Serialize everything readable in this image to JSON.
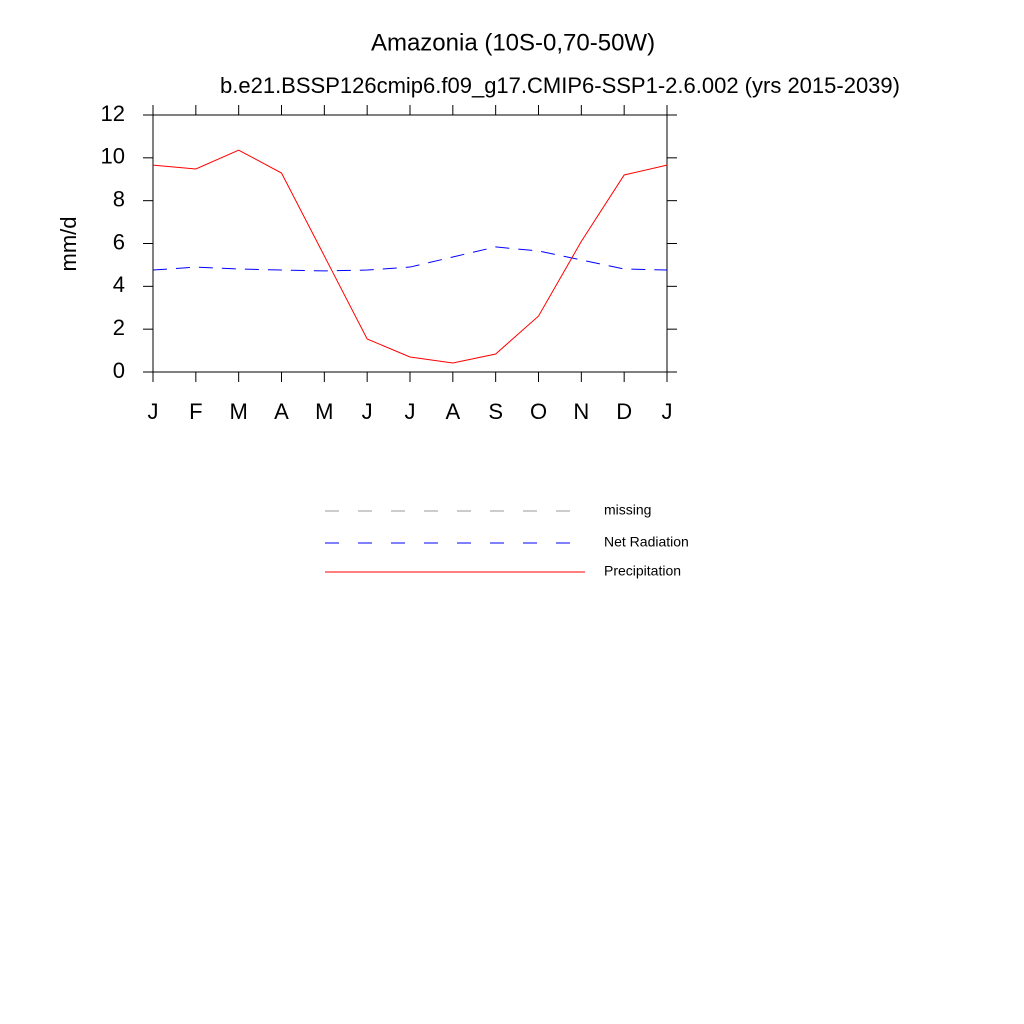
{
  "chart_data": {
    "type": "line",
    "title": "Amazonia (10S-0,70-50W)",
    "subtitle": "b.e21.BSSP126cmip6.f09_g17.CMIP6-SSP1-2.6.002 (yrs 2015-2039)",
    "y_label": "mm/d",
    "categories": [
      "J",
      "F",
      "M",
      "A",
      "M",
      "J",
      "J",
      "A",
      "S",
      "O",
      "N",
      "D",
      "J"
    ],
    "series": [
      {
        "name": "missing",
        "color": "#999999",
        "dashed": true,
        "values": [
          null,
          null,
          null,
          null,
          null,
          null,
          null,
          null,
          null,
          null,
          null,
          null,
          null
        ]
      },
      {
        "name": "Net Radiation",
        "color": "#0000ff",
        "dashed": true,
        "values": [
          4.76,
          4.9,
          4.81,
          4.76,
          4.72,
          4.76,
          4.9,
          5.37,
          5.84,
          5.65,
          5.23,
          4.81,
          4.76
        ]
      },
      {
        "name": "Precipitation",
        "color": "#ff0000",
        "dashed": false,
        "values": [
          9.66,
          9.48,
          10.36,
          9.29,
          5.42,
          1.54,
          0.7,
          0.42,
          0.84,
          2.61,
          6.1,
          9.2,
          9.66
        ]
      }
    ],
    "ylim": [
      0,
      12
    ],
    "yticks": [
      0,
      2,
      4,
      6,
      8,
      10,
      12
    ],
    "grid": false,
    "legend": "bottom"
  }
}
